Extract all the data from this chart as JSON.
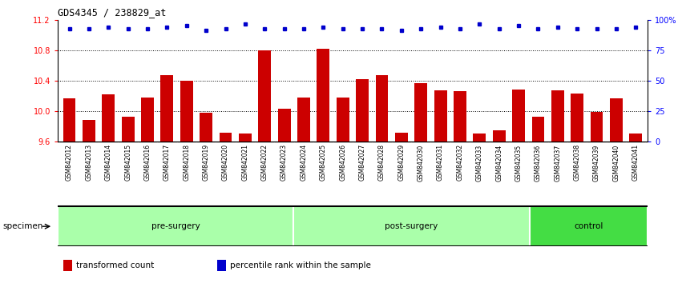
{
  "title": "GDS4345 / 238829_at",
  "samples": [
    "GSM842012",
    "GSM842013",
    "GSM842014",
    "GSM842015",
    "GSM842016",
    "GSM842017",
    "GSM842018",
    "GSM842019",
    "GSM842020",
    "GSM842021",
    "GSM842022",
    "GSM842023",
    "GSM842024",
    "GSM842025",
    "GSM842026",
    "GSM842027",
    "GSM842028",
    "GSM842029",
    "GSM842030",
    "GSM842031",
    "GSM842032",
    "GSM842033",
    "GSM842034",
    "GSM842035",
    "GSM842036",
    "GSM842037",
    "GSM842038",
    "GSM842039",
    "GSM842040",
    "GSM842041"
  ],
  "bar_values": [
    10.17,
    9.88,
    10.22,
    9.93,
    10.18,
    10.47,
    10.4,
    9.98,
    9.72,
    9.7,
    10.8,
    10.03,
    10.18,
    10.82,
    10.18,
    10.42,
    10.47,
    9.72,
    10.37,
    10.27,
    10.26,
    9.7,
    9.75,
    10.28,
    9.93,
    10.27,
    10.23,
    9.99,
    10.17,
    9.7
  ],
  "percentile_values_y": [
    11.08,
    11.08,
    11.1,
    11.08,
    11.08,
    11.1,
    11.12,
    11.06,
    11.08,
    11.15,
    11.08,
    11.08,
    11.08,
    11.1,
    11.08,
    11.08,
    11.08,
    11.06,
    11.08,
    11.1,
    11.08,
    11.15,
    11.08,
    11.12,
    11.08,
    11.1,
    11.08,
    11.08,
    11.08,
    11.1
  ],
  "groups": [
    {
      "label": "pre-surgery",
      "start": 0,
      "end": 12,
      "color": "#aaffaa"
    },
    {
      "label": "post-surgery",
      "start": 12,
      "end": 24,
      "color": "#aaffaa"
    },
    {
      "label": "control",
      "start": 24,
      "end": 30,
      "color": "#44dd44"
    }
  ],
  "bar_color": "#CC0000",
  "percentile_color": "#0000CC",
  "ylim_left": [
    9.6,
    11.2
  ],
  "ylim_right": [
    0,
    100
  ],
  "yticks_left": [
    9.6,
    10.0,
    10.4,
    10.8,
    11.2
  ],
  "yticks_right": [
    0,
    25,
    50,
    75,
    100
  ],
  "ytick_labels_right": [
    "0",
    "25",
    "50",
    "75",
    "100%"
  ],
  "grid_values": [
    10.0,
    10.4,
    10.8
  ],
  "legend_items": [
    {
      "label": "transformed count",
      "color": "#CC0000"
    },
    {
      "label": "percentile rank within the sample",
      "color": "#0000CC"
    }
  ],
  "specimen_label": "specimen",
  "xtick_bg": "#DCDCDC"
}
